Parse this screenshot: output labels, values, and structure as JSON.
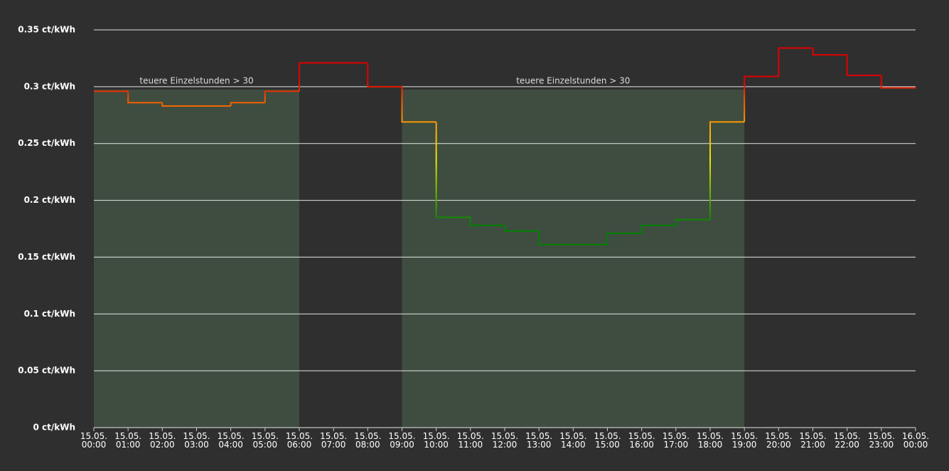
{
  "chart_data": {
    "type": "step_line",
    "categories": [
      "15.05.\n00:00",
      "15.05.\n01:00",
      "15.05.\n02:00",
      "15.05.\n03:00",
      "15.05.\n04:00",
      "15.05.\n05:00",
      "15.05.\n06:00",
      "15.05.\n07:00",
      "15.05.\n08:00",
      "15.05.\n09:00",
      "15.05.\n10:00",
      "15.05.\n11:00",
      "15.05.\n12:00",
      "15.05.\n13:00",
      "15.05.\n14:00",
      "15.05.\n15:00",
      "15.05.\n16:00",
      "15.05.\n17:00",
      "15.05.\n18:00",
      "15.05.\n19:00",
      "15.05.\n20:00",
      "15.05.\n21:00",
      "15.05.\n22:00",
      "15.05.\n23:00",
      "16.05.\n00:00"
    ],
    "values": [
      0.296,
      0.286,
      0.283,
      0.283,
      0.286,
      0.296,
      0.321,
      0.321,
      0.3,
      0.269,
      0.185,
      0.178,
      0.173,
      0.161,
      0.161,
      0.171,
      0.178,
      0.183,
      0.269,
      0.309,
      0.334,
      0.328,
      0.31,
      0.299,
      0.299
    ],
    "color_stops": [
      {
        "value": 0.18,
        "color": "#008000"
      },
      {
        "value": 0.235,
        "color": "#e8e800"
      },
      {
        "value": 0.265,
        "color": "#ffa500"
      },
      {
        "value": 0.29,
        "color": "#f05000"
      },
      {
        "value": 0.305,
        "color": "#e00000"
      }
    ],
    "mark_areas": [
      {
        "label": "teuere Einzelstunden > 30",
        "from": 0,
        "to": 6,
        "top": 0.2975,
        "color": "#3e4d40"
      },
      {
        "label": "teuere Einzelstunden > 30",
        "from": 9,
        "to": 19,
        "top": 0.2975,
        "color": "#3e4d40"
      }
    ],
    "ylim": [
      0,
      0.35
    ],
    "yticks": [
      {
        "value": 0,
        "label": "0 ct/kWh"
      },
      {
        "value": 0.05,
        "label": "0.05 ct/kWh"
      },
      {
        "value": 0.1,
        "label": "0.1 ct/kWh"
      },
      {
        "value": 0.15,
        "label": "0.15 ct/kWh"
      },
      {
        "value": 0.2,
        "label": "0.2 ct/kWh"
      },
      {
        "value": 0.25,
        "label": "0.25 ct/kWh"
      },
      {
        "value": 0.3,
        "label": "0.3 ct/kWh"
      },
      {
        "value": 0.35,
        "label": "0.35 ct/kWh"
      }
    ],
    "grid": true
  }
}
